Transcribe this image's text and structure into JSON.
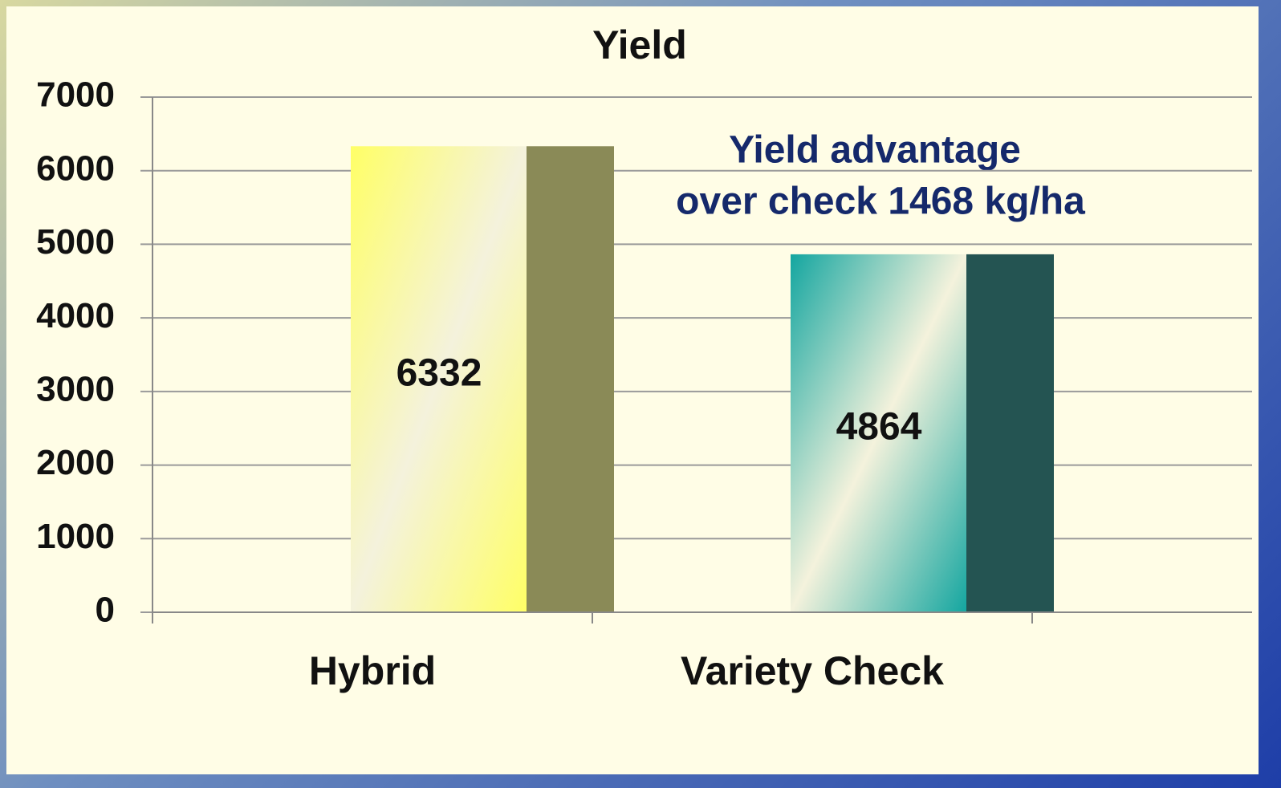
{
  "chart_data": {
    "type": "bar",
    "title": "Yield",
    "categories": [
      "Hybrid",
      "Variety Check"
    ],
    "values": [
      6332,
      4864
    ],
    "colors": [
      "#ffff66",
      "#14a6a0"
    ],
    "ylim": [
      0,
      7000
    ],
    "yticks": [
      0,
      1000,
      2000,
      3000,
      4000,
      5000,
      6000,
      7000
    ],
    "grid": true,
    "annotations": [
      "Yield advantage",
      "over check 1468 kg/ha"
    ]
  }
}
